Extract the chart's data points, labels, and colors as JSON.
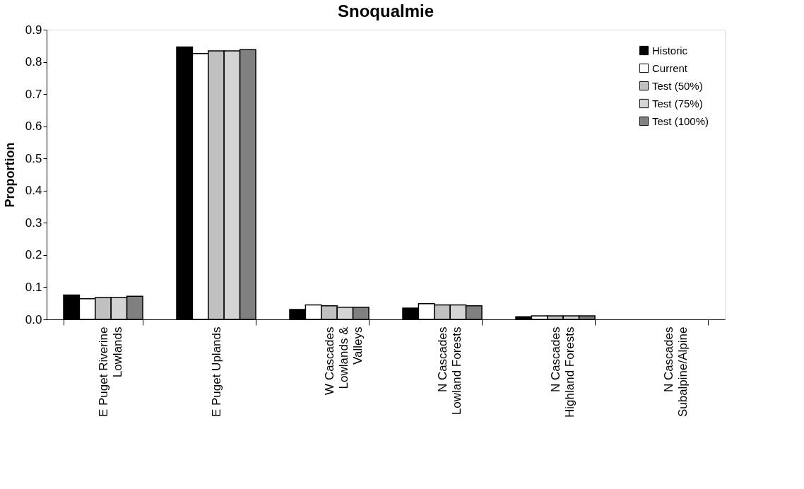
{
  "chart_data": {
    "type": "bar",
    "title": "Snoqualmie",
    "ylabel": "Proportion",
    "categories": [
      "E Puget Riverine\nLowlands",
      "E Puget Uplands",
      "W Cascades\nLowlands &\nValleys",
      "N Cascades\nLowland Forests",
      "N Cascades\nHighland Forests",
      "N Cascades\nSubalpine/Alpine"
    ],
    "series": [
      {
        "name": "Historic",
        "color": "#000000",
        "values": [
          0.076,
          0.846,
          0.031,
          0.035,
          0.008,
          null
        ]
      },
      {
        "name": "Current",
        "color": "#ffffff",
        "values": [
          0.064,
          0.826,
          0.045,
          0.049,
          0.011,
          null
        ]
      },
      {
        "name": "Test (50%)",
        "color": "#c0c0c0",
        "values": [
          0.068,
          0.834,
          0.042,
          0.045,
          0.011,
          null
        ]
      },
      {
        "name": "Test (75%)",
        "color": "#d4d4d4",
        "values": [
          0.068,
          0.834,
          0.038,
          0.045,
          0.011,
          null
        ]
      },
      {
        "name": "Test (100%)",
        "color": "#808080",
        "values": [
          0.072,
          0.838,
          0.038,
          0.042,
          0.011,
          null
        ]
      }
    ],
    "ylim": [
      0,
      0.9
    ],
    "yticks": [
      {
        "value": 0,
        "label": "0.0"
      },
      0.1,
      0.2,
      0.3,
      0.4,
      0.5,
      0.6,
      0.7,
      0.8,
      0.9
    ],
    "grid": false,
    "legend": "top right"
  }
}
